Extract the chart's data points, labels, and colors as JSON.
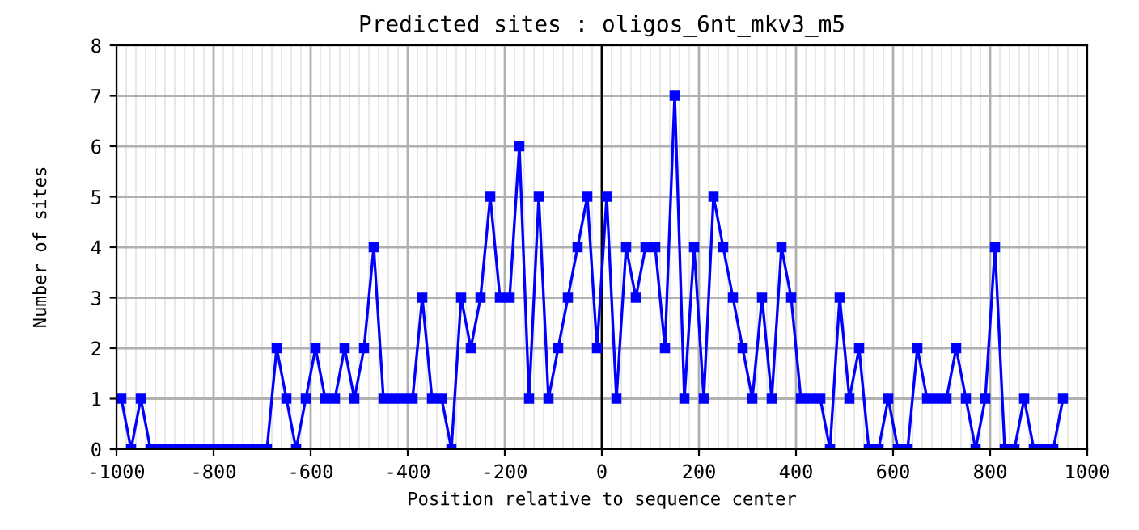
{
  "chart_data": {
    "type": "line",
    "title": "Predicted sites : oligos_6nt_mkv3_m5",
    "xlabel": "Position relative to sequence center",
    "ylabel": "Number of sites",
    "x": [
      -990,
      -970,
      -950,
      -930,
      -910,
      -890,
      -870,
      -850,
      -830,
      -810,
      -790,
      -770,
      -750,
      -730,
      -710,
      -690,
      -670,
      -650,
      -630,
      -610,
      -590,
      -570,
      -550,
      -530,
      -510,
      -490,
      -470,
      -450,
      -430,
      -410,
      -390,
      -370,
      -350,
      -330,
      -310,
      -290,
      -270,
      -250,
      -230,
      -210,
      -190,
      -170,
      -150,
      -130,
      -110,
      -90,
      -70,
      -50,
      -30,
      -10,
      10,
      30,
      50,
      70,
      90,
      110,
      130,
      150,
      170,
      190,
      210,
      230,
      250,
      270,
      290,
      310,
      330,
      350,
      370,
      390,
      410,
      430,
      450,
      470,
      490,
      510,
      530,
      550,
      570,
      590,
      610,
      630,
      650,
      670,
      690,
      710,
      730,
      750,
      770,
      790,
      810,
      830,
      850,
      870,
      890,
      910,
      930,
      950
    ],
    "series": [
      {
        "color": "#0000ff",
        "values": [
          1,
          0,
          1,
          0,
          0,
          0,
          0,
          0,
          0,
          0,
          0,
          0,
          0,
          0,
          0,
          0,
          2,
          1,
          0,
          1,
          2,
          1,
          1,
          2,
          1,
          2,
          4,
          1,
          1,
          1,
          1,
          3,
          1,
          1,
          0,
          3,
          2,
          3,
          5,
          3,
          3,
          6,
          1,
          5,
          1,
          2,
          3,
          4,
          5,
          2,
          5,
          1,
          4,
          3,
          4,
          4,
          2,
          7,
          1,
          4,
          1,
          5,
          4,
          3,
          2,
          1,
          3,
          1,
          4,
          3,
          1,
          1,
          1,
          0,
          3,
          1,
          2,
          0,
          0,
          1,
          0,
          0,
          2,
          1,
          1,
          1,
          2,
          1,
          0,
          1,
          4,
          0,
          0,
          1,
          0,
          0,
          0,
          1
        ]
      }
    ],
    "xlim": [
      -1000,
      1000
    ],
    "xticks": [
      -1000,
      -800,
      -600,
      -400,
      -200,
      0,
      200,
      400,
      600,
      800,
      1000
    ],
    "ylim": [
      0,
      8
    ],
    "yticks": [
      0,
      1,
      2,
      3,
      4,
      5,
      6,
      7,
      8
    ],
    "ref_lines": [
      {
        "axis": "x",
        "value": 0,
        "color": "#000000"
      }
    ],
    "grid": true,
    "marker": "square",
    "line_style": "solid",
    "legend": false
  }
}
